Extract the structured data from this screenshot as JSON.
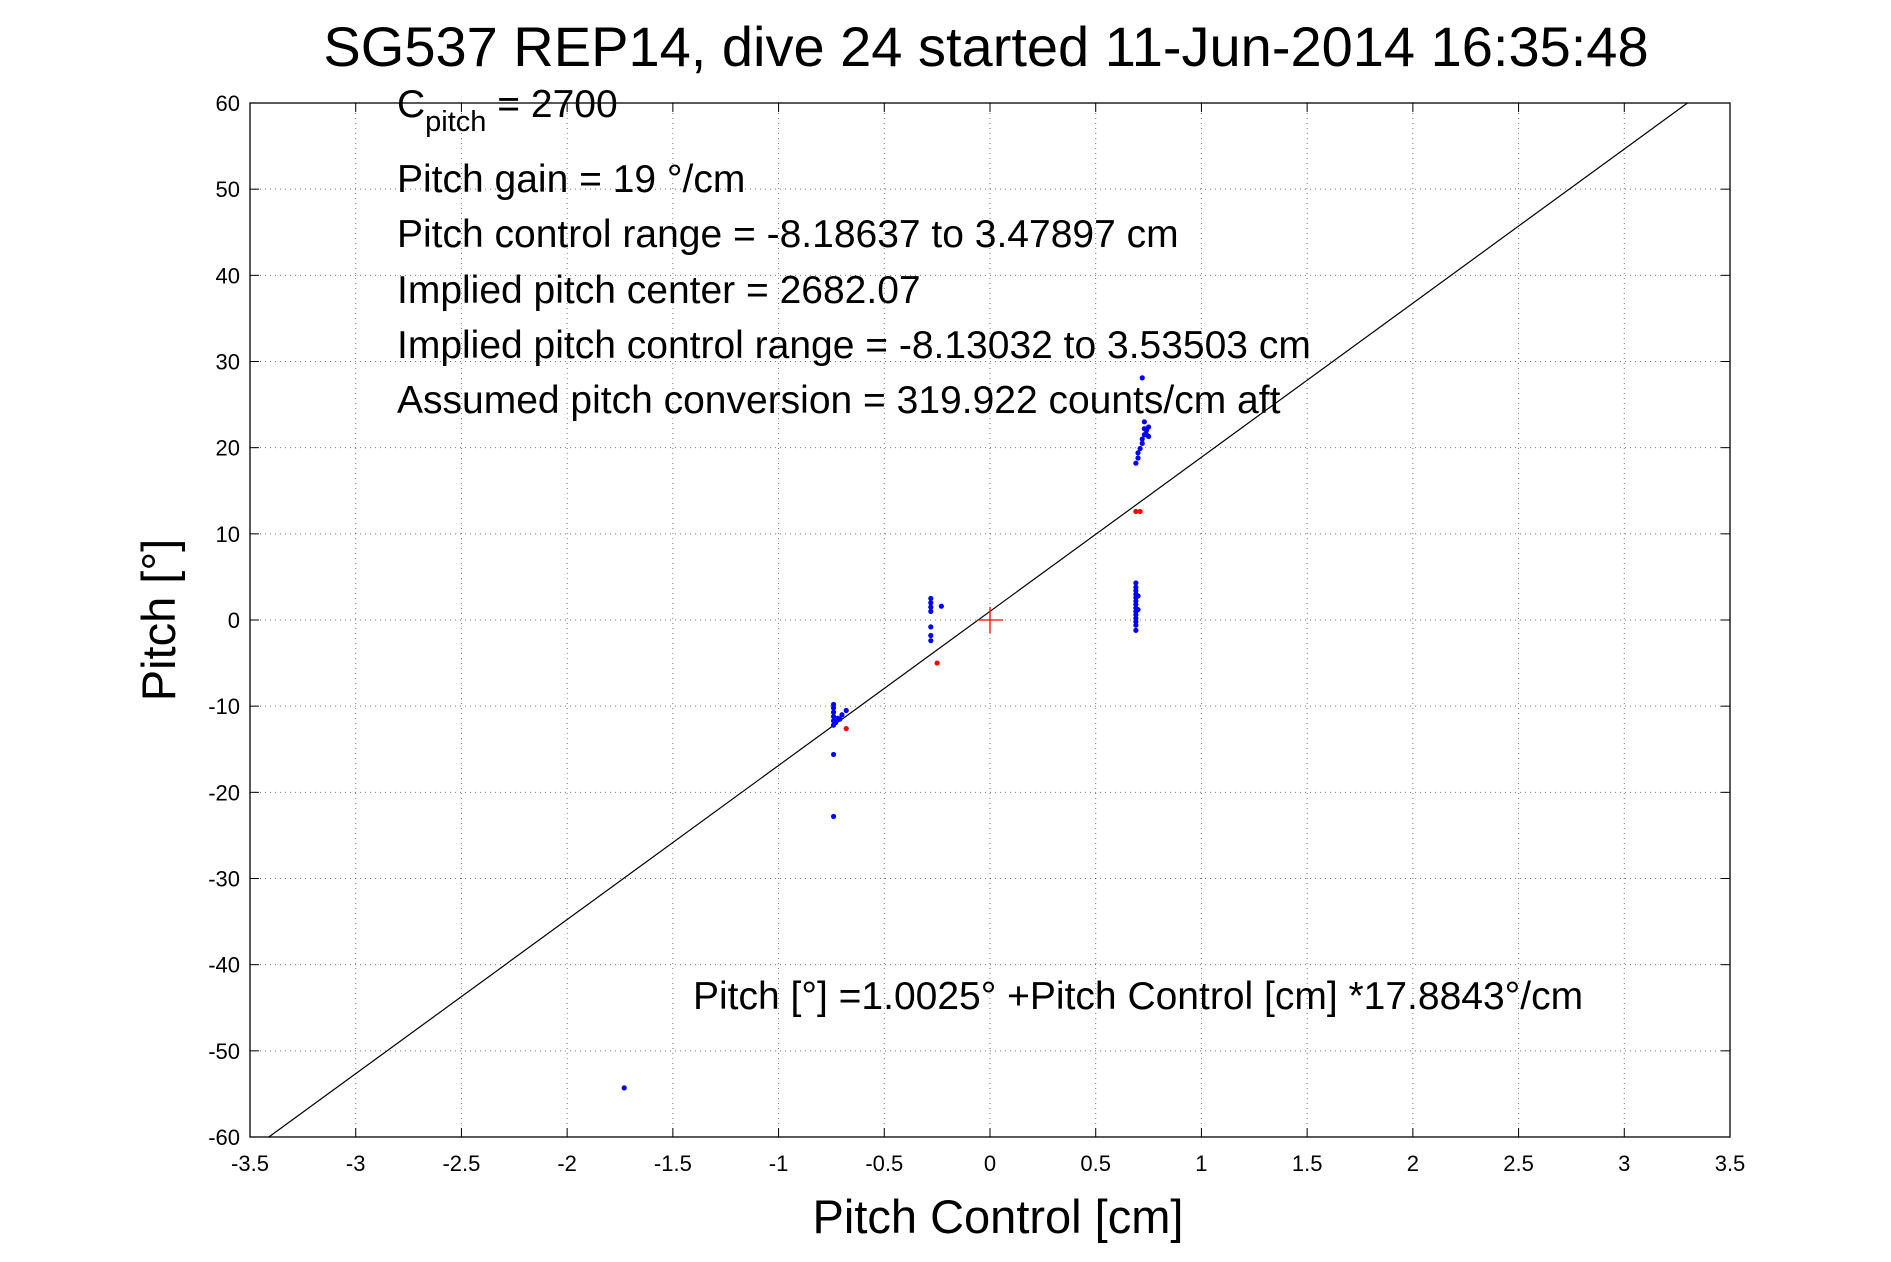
{
  "chart_data": {
    "type": "scatter",
    "title": "SG537 REP14, dive 24 started 11-Jun-2014 16:35:48",
    "xlabel": "Pitch Control [cm]",
    "ylabel": "Pitch [°]",
    "xlim": [
      -3.5,
      3.5
    ],
    "ylim": [
      -60,
      60
    ],
    "xticks": [
      -3.5,
      -3,
      -2.5,
      -2,
      -1.5,
      -1,
      -0.5,
      0,
      0.5,
      1,
      1.5,
      2,
      2.5,
      3,
      3.5
    ],
    "yticks": [
      -60,
      -50,
      -40,
      -30,
      -20,
      -10,
      0,
      10,
      20,
      30,
      40,
      50,
      60
    ],
    "xtick_labels": [
      "-3.5",
      "-3",
      "-2.5",
      "-2",
      "-1.5",
      "-1",
      "-0.5",
      "0",
      "0.5",
      "1",
      "1.5",
      "2",
      "2.5",
      "3",
      "3.5"
    ],
    "ytick_labels": [
      "-60",
      "-50",
      "-40",
      "-30",
      "-20",
      "-10",
      "0",
      "10",
      "20",
      "30",
      "40",
      "50",
      "60"
    ],
    "grid": true,
    "colors": {
      "blue": "#0000ff",
      "red": "#ff0000",
      "line": "#000000"
    },
    "annotations": {
      "c_pitch_base": "C",
      "c_pitch_sub": "pitch",
      "c_pitch_rest": " = 2700",
      "gain": "Pitch gain = 19 °/cm",
      "range": "Pitch control range = -8.18637 to 3.47897 cm",
      "center": "Implied pitch center = 2682.07",
      "implied_range": "Implied pitch control range = -8.13032 to 3.53503 cm",
      "conversion": "Assumed pitch conversion = 319.922 counts/cm aft",
      "fit": "Pitch [°] =1.0025° +Pitch Control [cm] *17.8843°/cm"
    },
    "fit_line": {
      "intercept": 1.0025,
      "slope": 17.8843
    },
    "center_marker": {
      "x": 0,
      "y": 0,
      "color": "#ff0000"
    },
    "series": [
      {
        "color": "#0000ff",
        "points": [
          [
            -1.73,
            -54.3
          ],
          [
            -0.74,
            -22.8
          ],
          [
            -0.74,
            -15.6
          ],
          [
            -0.74,
            -12.2
          ],
          [
            -0.74,
            -11.7
          ],
          [
            -0.74,
            -11.2
          ],
          [
            -0.74,
            -10.7
          ],
          [
            -0.74,
            -10.2
          ],
          [
            -0.74,
            -9.8
          ],
          [
            -0.73,
            -11.9
          ],
          [
            -0.72,
            -11.4
          ],
          [
            -0.71,
            -11.5
          ],
          [
            -0.7,
            -11.0
          ],
          [
            -0.68,
            -10.5
          ],
          [
            -0.28,
            2.5
          ],
          [
            -0.28,
            2.0
          ],
          [
            -0.28,
            1.5
          ],
          [
            -0.28,
            1.0
          ],
          [
            -0.28,
            -0.8
          ],
          [
            -0.28,
            -1.8
          ],
          [
            -0.28,
            -2.4
          ],
          [
            -0.23,
            1.6
          ],
          [
            0.69,
            4.3
          ],
          [
            0.69,
            3.8
          ],
          [
            0.69,
            3.4
          ],
          [
            0.69,
            3.0
          ],
          [
            0.69,
            2.6
          ],
          [
            0.69,
            2.2
          ],
          [
            0.69,
            1.8
          ],
          [
            0.69,
            1.4
          ],
          [
            0.69,
            1.0
          ],
          [
            0.69,
            0.6
          ],
          [
            0.69,
            0.2
          ],
          [
            0.69,
            -0.2
          ],
          [
            0.69,
            -0.6
          ],
          [
            0.69,
            -1.2
          ],
          [
            0.7,
            2.8
          ],
          [
            0.7,
            1.2
          ],
          [
            0.69,
            18.2
          ],
          [
            0.7,
            18.8
          ],
          [
            0.7,
            19.4
          ],
          [
            0.71,
            19.9
          ],
          [
            0.72,
            20.5
          ],
          [
            0.72,
            21.0
          ],
          [
            0.73,
            21.5
          ],
          [
            0.73,
            22.2
          ],
          [
            0.73,
            23.0
          ],
          [
            0.74,
            21.5
          ],
          [
            0.74,
            22.0
          ],
          [
            0.75,
            21.3
          ],
          [
            0.75,
            22.4
          ],
          [
            0.72,
            28.1
          ]
        ]
      },
      {
        "color": "#ff0000",
        "points": [
          [
            -0.68,
            -12.6
          ],
          [
            -0.25,
            -5.0
          ],
          [
            0.69,
            12.6
          ],
          [
            0.71,
            12.6
          ]
        ]
      }
    ]
  }
}
